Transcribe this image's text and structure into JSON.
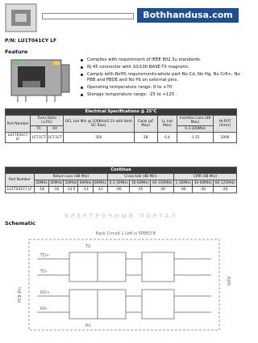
{
  "header": {
    "brand": "Bothhandusa.com"
  },
  "part_number": "P/N: LU1T041CY LF",
  "feature": {
    "title": "Feature",
    "items": [
      "Complies with requirement of IEEE 802.3u standards.",
      "RJ 45 connector with 10/100 BASE-TX magnetic.",
      "Comply with RoHS requirements-whole part No Cd, No Hg, No Cr6+, No PBB and PBDE and No Pb on external pins.",
      "Operating temperature range: 0 to +70",
      "Storage temperature range: -25 to +125 ."
    ]
  },
  "electrical": {
    "title": "Electrical Specifications @ 25°C",
    "headers": [
      "Part Number",
      "Turns Ratio (±5%)",
      "OCL (uH Min @ 100KHz/0.1V with 8mA DC Bias)",
      "Cw/w (pF Max)",
      "LL (uH Max)",
      "Insertion Loss (dB Max)",
      "HI-POT (Vrms)"
    ],
    "subheaders": [
      "TX",
      "RX",
      "0.3-100MHz"
    ],
    "row": [
      "LU1T041CY LF",
      "1CT:1CT",
      "1CT:1CT",
      "350",
      "28",
      "0.4",
      "-1.15",
      "2000"
    ]
  },
  "continue": {
    "title": "Continue",
    "headers": [
      "Part Number",
      "Return Loss (dB Min)",
      "Cross talk (dB Min)",
      "CMR (dB Min)"
    ],
    "subheaders": [
      "30MHz",
      "40MHz",
      "50MHz",
      "60MHz",
      "80MHz",
      "0.3-30MHz",
      "30-60MHz",
      "60-100MHz",
      "1-30MHz",
      "30-60MHz",
      "60-125MHz"
    ],
    "row": [
      "LU1T041CY LF",
      "-18",
      "-16",
      "-13.5",
      "-13",
      "-12",
      "-40",
      "-35",
      "-30",
      "-40",
      "-30",
      "-20"
    ]
  },
  "watermark": "ЭЛЕКТРОННЫЙ ПОРТАЛ",
  "schematic": {
    "title": "Schematic",
    "caption": "Back Circuit 1 Left is SPEED B",
    "labels": [
      "TX",
      "RX",
      "TD+",
      "TD-",
      "RD+",
      "RD-",
      "PCB Pin",
      "RJ45"
    ]
  }
}
